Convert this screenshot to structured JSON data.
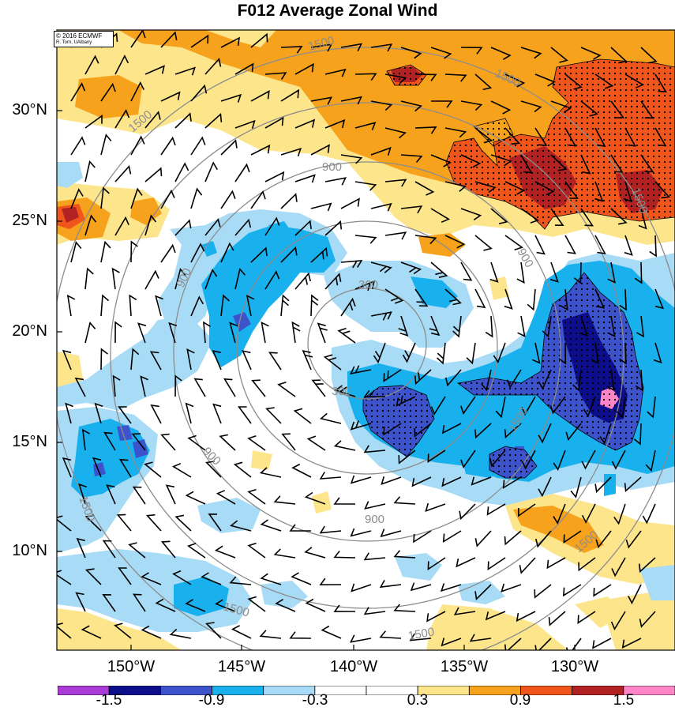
{
  "title": "F012 Average Zonal Wind",
  "credit": {
    "line1": "© 2016 ECMWF",
    "line2": "R. Torn, UAlbany"
  },
  "map": {
    "lat_labels": [
      "30°N",
      "25°N",
      "20°N",
      "15°N",
      "10°N"
    ],
    "lon_labels": [
      "150°W",
      "145°W",
      "140°W",
      "135°W",
      "130°W"
    ],
    "contour_labels": [
      "1500",
      "1500",
      "1500",
      "900",
      "900",
      "900",
      "900",
      "900",
      "300",
      "300",
      "1500",
      "1500",
      "1500",
      "1500",
      "1500"
    ],
    "contour_color": "#8c8c8c",
    "features": {
      "stipple": "dots mark significant regions",
      "wind_barbs": true
    }
  },
  "colorbar": {
    "levels": [
      "-1.5",
      "-0.9",
      "-0.3",
      "0.3",
      "0.9",
      "1.5"
    ],
    "colors": [
      "#a93bd6",
      "#0d0e8c",
      "#3d53cc",
      "#19b0ee",
      "#a8dbf5",
      "#ffffff",
      "#ffffff",
      "#fde58c",
      "#f7a21c",
      "#f0561b",
      "#b22222",
      "#ff85c8"
    ]
  },
  "colors": {
    "light_blue": "#a8dbf5",
    "cyan": "#19b0ee",
    "medium_blue": "#3d53cc",
    "navy": "#0d0e8c",
    "magenta": "#ff85c8",
    "light_yellow": "#fde58c",
    "orange": "#f7a21c",
    "red_orange": "#f0561b",
    "dark_red": "#b22222"
  }
}
